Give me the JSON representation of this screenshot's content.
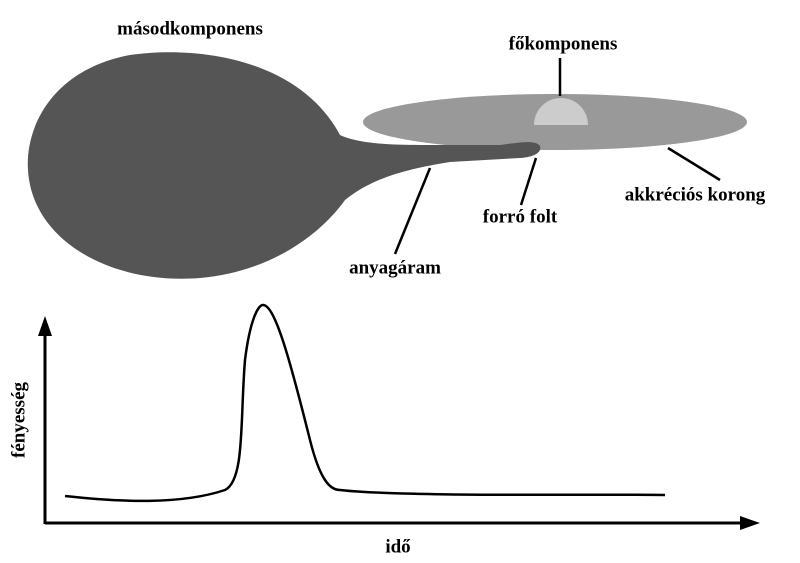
{
  "labels": {
    "secondary": "másodkomponens",
    "primary": "főkomponens",
    "disk": "akkréciós korong",
    "hot_spot": "forró folt",
    "stream": "anyagáram"
  },
  "light_curve": {
    "y_label": "fényesség",
    "x_label": "idő"
  }
}
